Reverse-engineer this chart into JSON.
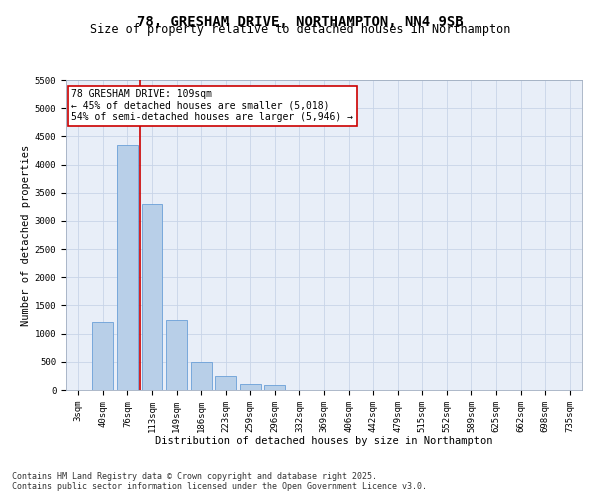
{
  "title1": "78, GRESHAM DRIVE, NORTHAMPTON, NN4 9SB",
  "title2": "Size of property relative to detached houses in Northampton",
  "xlabel": "Distribution of detached houses by size in Northampton",
  "ylabel": "Number of detached properties",
  "categories": [
    "3sqm",
    "40sqm",
    "76sqm",
    "113sqm",
    "149sqm",
    "186sqm",
    "223sqm",
    "259sqm",
    "296sqm",
    "332sqm",
    "369sqm",
    "406sqm",
    "442sqm",
    "479sqm",
    "515sqm",
    "552sqm",
    "589sqm",
    "625sqm",
    "662sqm",
    "698sqm",
    "735sqm"
  ],
  "values": [
    0,
    1200,
    4350,
    3300,
    1250,
    500,
    250,
    100,
    90,
    0,
    0,
    0,
    0,
    0,
    0,
    0,
    0,
    0,
    0,
    0,
    0
  ],
  "bar_color": "#b8cfe8",
  "bar_edge_color": "#6a9fd8",
  "vline_color": "#cc0000",
  "vline_xidx": 2.5,
  "annotation_text": "78 GRESHAM DRIVE: 109sqm\n← 45% of detached houses are smaller (5,018)\n54% of semi-detached houses are larger (5,946) →",
  "annotation_box_color": "#ffffff",
  "annotation_edge_color": "#cc0000",
  "ylim_max": 5500,
  "yticks": [
    0,
    500,
    1000,
    1500,
    2000,
    2500,
    3000,
    3500,
    4000,
    4500,
    5000,
    5500
  ],
  "grid_color": "#c8d4e8",
  "bg_color": "#e8eef8",
  "footer1": "Contains HM Land Registry data © Crown copyright and database right 2025.",
  "footer2": "Contains public sector information licensed under the Open Government Licence v3.0.",
  "title1_fontsize": 10,
  "title2_fontsize": 8.5,
  "axis_label_fontsize": 7.5,
  "tick_fontsize": 6.5,
  "annotation_fontsize": 7,
  "footer_fontsize": 6
}
